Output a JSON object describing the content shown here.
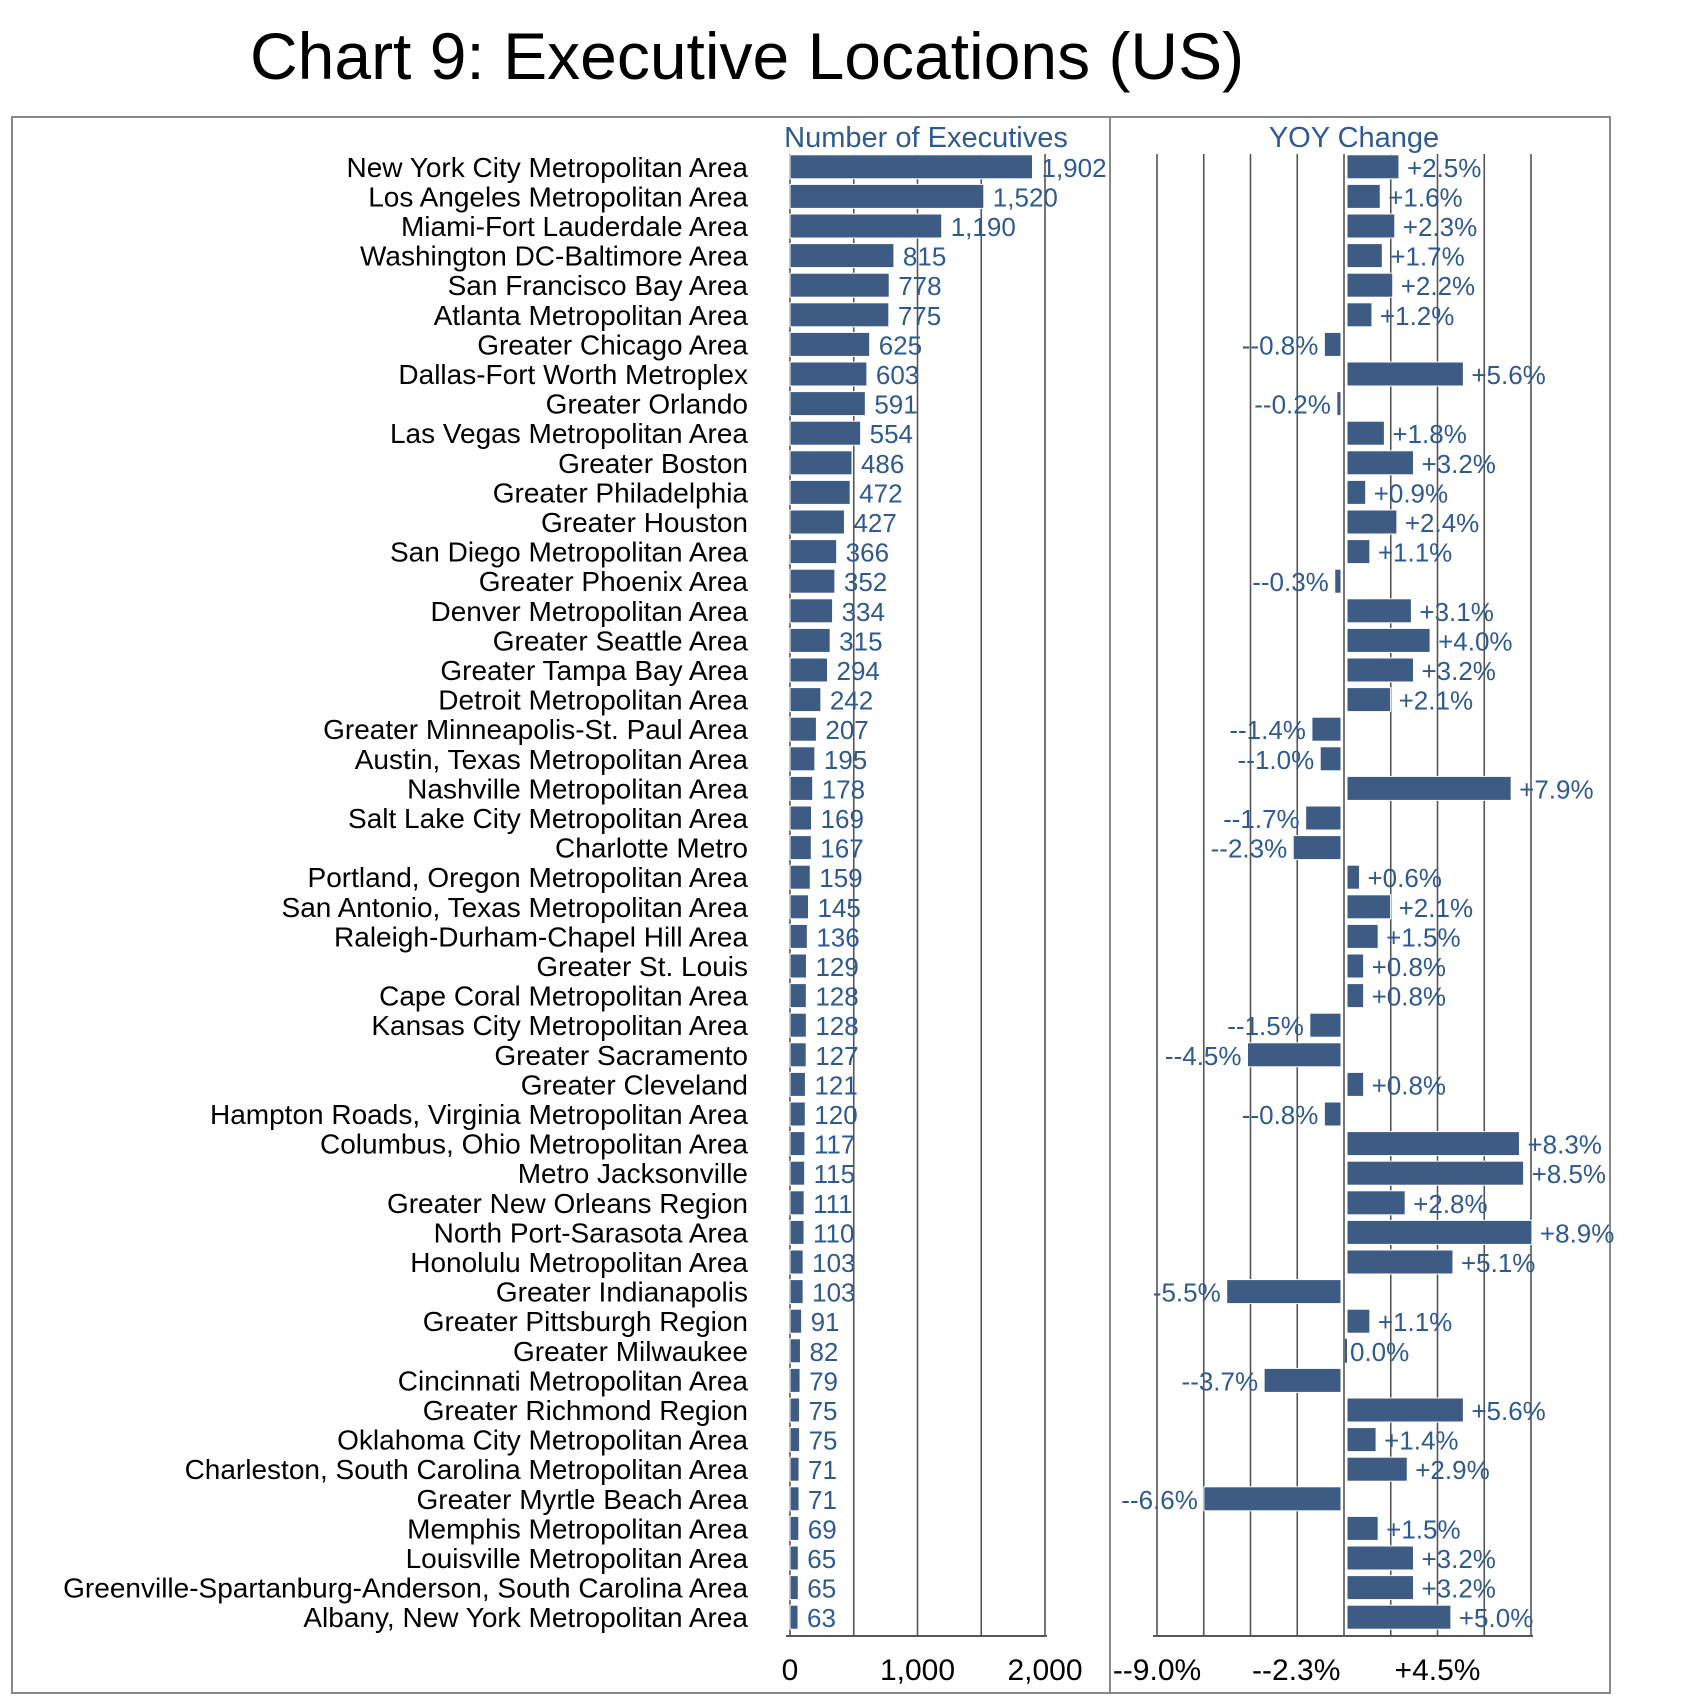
{
  "chart_data": {
    "type": "bar",
    "title": "Chart 9: Executive Locations (US)",
    "categories": [
      "New York City Metropolitan Area",
      "Los Angeles Metropolitan Area",
      "Miami-Fort Lauderdale Area",
      "Washington DC-Baltimore Area",
      "San Francisco Bay Area",
      "Atlanta Metropolitan Area",
      "Greater Chicago Area",
      "Dallas-Fort Worth Metroplex",
      "Greater Orlando",
      "Las Vegas Metropolitan Area",
      "Greater Boston",
      "Greater Philadelphia",
      "Greater Houston",
      "San Diego Metropolitan Area",
      "Greater Phoenix Area",
      "Denver Metropolitan Area",
      "Greater Seattle Area",
      "Greater Tampa Bay Area",
      "Detroit Metropolitan Area",
      "Greater Minneapolis-St. Paul Area",
      "Austin, Texas Metropolitan Area",
      "Nashville Metropolitan Area",
      "Salt Lake City Metropolitan Area",
      "Charlotte Metro",
      "Portland, Oregon Metropolitan Area",
      "San Antonio, Texas Metropolitan Area",
      "Raleigh-Durham-Chapel Hill Area",
      "Greater St. Louis",
      "Cape Coral Metropolitan Area",
      "Kansas City Metropolitan Area",
      "Greater Sacramento",
      "Greater Cleveland",
      "Hampton Roads, Virginia Metropolitan Area",
      "Columbus, Ohio Metropolitan Area",
      "Metro Jacksonville",
      "Greater New Orleans Region",
      "North Port-Sarasota Area",
      "Honolulu Metropolitan Area",
      "Greater Indianapolis",
      "Greater Pittsburgh Region",
      "Greater Milwaukee",
      "Cincinnati Metropolitan Area",
      "Greater Richmond Region",
      "Oklahoma City Metropolitan Area",
      "Charleston, South Carolina Metropolitan Area",
      "Greater Myrtle Beach Area",
      "Memphis Metropolitan Area",
      "Louisville Metropolitan Area",
      "Greenville-Spartanburg-Anderson, South Carolina Area",
      "Albany, New York Metropolitan Area"
    ],
    "series": [
      {
        "name": "Number of Executives",
        "values": [
          1902,
          1520,
          1190,
          815,
          778,
          775,
          625,
          603,
          591,
          554,
          486,
          472,
          427,
          366,
          352,
          334,
          315,
          294,
          242,
          207,
          195,
          178,
          169,
          167,
          159,
          145,
          136,
          129,
          128,
          128,
          127,
          121,
          120,
          117,
          115,
          111,
          110,
          103,
          103,
          91,
          82,
          79,
          75,
          75,
          71,
          71,
          69,
          65,
          65,
          63
        ],
        "labels": [
          "1,902",
          "1,520",
          "1,190",
          "815",
          "778",
          "775",
          "625",
          "603",
          "591",
          "554",
          "486",
          "472",
          "427",
          "366",
          "352",
          "334",
          "315",
          "294",
          "242",
          "207",
          "195",
          "178",
          "169",
          "167",
          "159",
          "145",
          "136",
          "129",
          "128",
          "128",
          "127",
          "121",
          "120",
          "117",
          "115",
          "111",
          "110",
          "103",
          "103",
          "91",
          "82",
          "79",
          "75",
          "75",
          "71",
          "71",
          "69",
          "65",
          "65",
          "63"
        ],
        "xlim": [
          0,
          2000
        ],
        "ticks": [
          "0",
          "1,000",
          "2,000"
        ],
        "tick_values": [
          0,
          1000,
          2000
        ],
        "grid_values": [
          0,
          500,
          1000,
          1500,
          2000
        ]
      },
      {
        "name": "YOY Change",
        "values": [
          2.5,
          1.6,
          2.3,
          1.7,
          2.2,
          1.2,
          -0.8,
          5.6,
          -0.2,
          1.8,
          3.2,
          0.9,
          2.4,
          1.1,
          -0.3,
          3.1,
          4.0,
          3.2,
          2.1,
          -1.4,
          -1.0,
          7.9,
          -1.7,
          -2.3,
          0.6,
          2.1,
          1.5,
          0.8,
          0.8,
          -1.5,
          -4.5,
          0.8,
          -0.8,
          8.3,
          8.5,
          2.8,
          8.9,
          5.1,
          -5.5,
          1.1,
          0.0,
          -3.7,
          5.6,
          1.4,
          2.9,
          -6.6,
          1.5,
          3.2,
          3.2,
          5.0
        ],
        "labels": [
          "+2.5%",
          "+1.6%",
          "+2.3%",
          "+1.7%",
          "+2.2%",
          "+1.2%",
          "--0.8%",
          "+5.6%",
          "--0.2%",
          "+1.8%",
          "+3.2%",
          "+0.9%",
          "+2.4%",
          "+1.1%",
          "--0.3%",
          "+3.1%",
          "+4.0%",
          "+3.2%",
          "+2.1%",
          "--1.4%",
          "--1.0%",
          "+7.9%",
          "--1.7%",
          "--2.3%",
          "+0.6%",
          "+2.1%",
          "+1.5%",
          "+0.8%",
          "+0.8%",
          "--1.5%",
          "--4.5%",
          "+0.8%",
          "--0.8%",
          "+8.3%",
          "+8.5%",
          "+2.8%",
          "+8.9%",
          "+5.1%",
          "-5.5%",
          "+1.1%",
          "0.0%",
          "--3.7%",
          "+5.6%",
          "+1.4%",
          "+2.9%",
          "--6.6%",
          "+1.5%",
          "+3.2%",
          "+3.2%",
          "+5.0%"
        ],
        "xlim": [
          -9.0,
          9.0
        ],
        "ticks": [
          "--9.0%",
          "--2.3%",
          "+4.5%"
        ],
        "tick_values": [
          -9.0,
          -2.3,
          4.5
        ],
        "grid_values": [
          -9.0,
          -6.75,
          -4.5,
          -2.25,
          0,
          2.25,
          4.5,
          6.75,
          9.0
        ]
      }
    ],
    "grid": true,
    "legend": "none",
    "colors": {
      "bar": "#3e5b84",
      "value_text": "#2f5a8f",
      "axis": "#555555",
      "frame": "#888888"
    }
  }
}
